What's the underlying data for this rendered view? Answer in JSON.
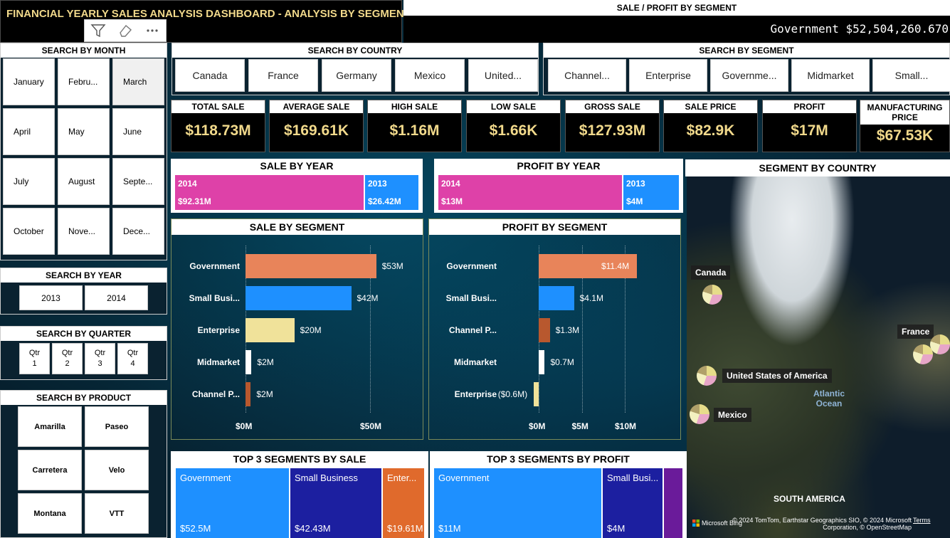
{
  "dashboard": {
    "title": "FINANCIAL YEARLY SALES ANALYSIS DASHBOARD - ANALYSIS BY SEGMENT",
    "toolbar": {
      "filter_icon": "filter-icon",
      "eraser_icon": "eraser-icon",
      "more_icon": "more-icon"
    }
  },
  "ticker": {
    "header": "SALE / PROFIT BY SEGMENT",
    "text": "Government $52,504,260.670"
  },
  "month_slicer": {
    "title": "SEARCH BY MONTH",
    "items": [
      "January",
      "Febru...",
      "March",
      "April",
      "May",
      "June",
      "July",
      "August",
      "Septe...",
      "October",
      "Nove...",
      "Dece..."
    ]
  },
  "year_slicer": {
    "title": "SEARCH BY YEAR",
    "items": [
      "2013",
      "2014"
    ]
  },
  "quarter_slicer": {
    "title": "SEARCH BY QUARTER",
    "items": [
      {
        "a": "Qtr",
        "b": "1"
      },
      {
        "a": "Qtr",
        "b": "2"
      },
      {
        "a": "Qtr",
        "b": "3"
      },
      {
        "a": "Qtr",
        "b": "4"
      }
    ]
  },
  "product_slicer": {
    "title": "SEARCH BY PRODUCT",
    "items": [
      "Amarilla",
      "Paseo",
      "Carretera",
      "Velo",
      "Montana",
      "VTT"
    ]
  },
  "country_slicer": {
    "title": "SEARCH BY COUNTRY",
    "items": [
      "Canada",
      "France",
      "Germany",
      "Mexico",
      "United..."
    ]
  },
  "segment_slicer": {
    "title": "SEARCH BY SEGMENT",
    "items": [
      "Channel...",
      "Enterprise",
      "Governme...",
      "Midmarket",
      "Small..."
    ]
  },
  "kpis": [
    {
      "label": "TOTAL SALE",
      "value": "$118.73M"
    },
    {
      "label": "AVERAGE SALE",
      "value": "$169.61K"
    },
    {
      "label": "HIGH SALE",
      "value": "$1.16M"
    },
    {
      "label": "LOW SALE",
      "value": "$1.66K"
    },
    {
      "label": "GROSS SALE",
      "value": "$127.93M"
    },
    {
      "label": "SALE PRICE",
      "value": "$82.9K"
    },
    {
      "label": "PROFIT",
      "value": "$17M"
    },
    {
      "label": "MANUFACTURING PRICE",
      "value": "$67.53K"
    }
  ],
  "sale_by_year": {
    "title": "SALE BY YEAR",
    "segments": [
      {
        "year": "2014",
        "value_label": "$92.31M",
        "value": 92.31,
        "color": "#de41a8"
      },
      {
        "year": "2013",
        "value_label": "$26.42M",
        "value": 26.42,
        "color": "#1e90ff"
      }
    ]
  },
  "profit_by_year": {
    "title": "PROFIT BY YEAR",
    "segments": [
      {
        "year": "2014",
        "value_label": "$13M",
        "value": 13,
        "color": "#de41a8"
      },
      {
        "year": "2013",
        "value_label": "$4M",
        "value": 4,
        "color": "#1e90ff"
      }
    ]
  },
  "chart_data": [
    {
      "type": "bar",
      "title": "SALE BY SEGMENT",
      "categories": [
        "Government",
        "Small Busi...",
        "Enterprise",
        "Midmarket",
        "Channel P..."
      ],
      "values": [
        52.5,
        42.43,
        19.61,
        2.4,
        2.1
      ],
      "data_labels": [
        "$53M",
        "$42M",
        "$20M",
        "$2M",
        "$2M"
      ],
      "colors": [
        "#e8845a",
        "#1e90ff",
        "#f0e29a",
        "#ffffff",
        "#b8582e"
      ],
      "xticks": [
        {
          "v": 0,
          "label": "$0M"
        },
        {
          "v": 50,
          "label": "$50M"
        }
      ],
      "xlim": [
        0,
        60
      ]
    },
    {
      "type": "bar",
      "title": "PROFIT BY SEGMENT",
      "categories": [
        "Government",
        "Small Busi...",
        "Channel P...",
        "Midmarket",
        "Enterprise"
      ],
      "values": [
        11.4,
        4.1,
        1.3,
        0.7,
        -0.6
      ],
      "data_labels": [
        "$11.4M",
        "$4.1M",
        "$1.3M",
        "$0.7M",
        "($0.6M)"
      ],
      "colors": [
        "#e8845a",
        "#1e90ff",
        "#b8582e",
        "#ffffff",
        "#f0e29a"
      ],
      "xticks": [
        {
          "v": 0,
          "label": "$0M"
        },
        {
          "v": 5,
          "label": "$5M"
        },
        {
          "v": 10,
          "label": "$10M"
        }
      ],
      "xlim": [
        -1,
        12
      ]
    }
  ],
  "top3_sale": {
    "title": "TOP 3 SEGMENTS BY SALE",
    "items": [
      {
        "name": "Government",
        "value_label": "$52.5M",
        "value": 52.5,
        "color": "#1e90ff"
      },
      {
        "name": "Small Business",
        "value_label": "$42.43M",
        "value": 42.43,
        "color": "#1c1fa0"
      },
      {
        "name": "Enter...",
        "value_label": "$19.61M",
        "value": 19.61,
        "color": "#e06a2c"
      }
    ]
  },
  "top3_profit": {
    "title": "TOP 3 SEGMENTS BY PROFIT",
    "items": [
      {
        "name": "Government",
        "value_label": "$11M",
        "value": 11,
        "color": "#1e90ff"
      },
      {
        "name": "Small Busi...",
        "value_label": "$4M",
        "value": 4,
        "color": "#1c1fa0"
      },
      {
        "name": "",
        "value_label": "",
        "value": 1.3,
        "color": "#6a1b9a"
      }
    ]
  },
  "map": {
    "title": "SEGMENT BY COUNTRY",
    "labels": [
      "Canada",
      "France",
      "United States of America",
      "Mexico"
    ],
    "ocean": [
      "Atlantic",
      "Ocean"
    ],
    "continent": "SOUTH AMERICA",
    "attribution": "© 2024 TomTom, Earthstar Geographics SIO, © 2024 Microsoft Corporation, © OpenStreetMap",
    "terms": "Terms",
    "brand": "Microsoft Bing"
  }
}
